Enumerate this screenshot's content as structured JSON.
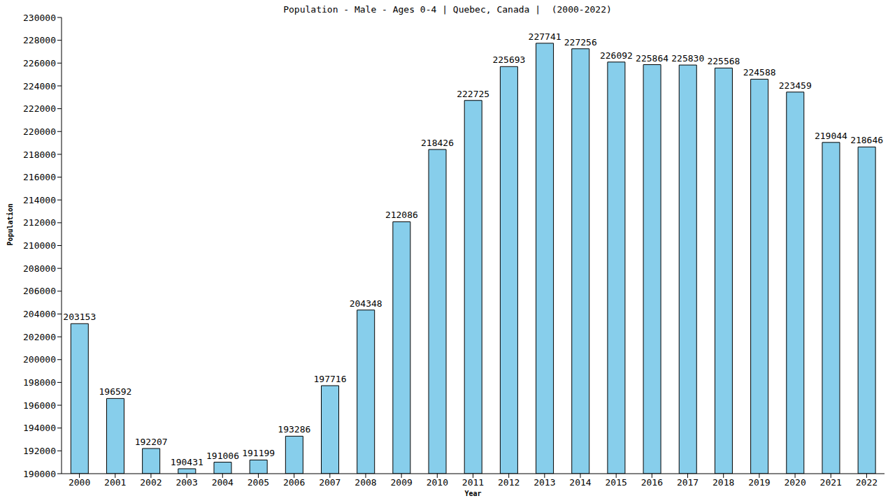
{
  "chart_data": {
    "type": "bar",
    "title": "Population - Male - Ages 0-4 | Quebec, Canada |  (2000-2022)",
    "x_label": "Year",
    "y_label": "Population",
    "categories": [
      "2000",
      "2001",
      "2002",
      "2003",
      "2004",
      "2005",
      "2006",
      "2007",
      "2008",
      "2009",
      "2010",
      "2011",
      "2012",
      "2013",
      "2014",
      "2015",
      "2016",
      "2017",
      "2018",
      "2019",
      "2020",
      "2021",
      "2022"
    ],
    "values": [
      203153,
      196592,
      192207,
      190431,
      191006,
      191199,
      193286,
      197716,
      204348,
      212086,
      218426,
      222725,
      225693,
      227741,
      227256,
      226092,
      225864,
      225830,
      225568,
      224588,
      223459,
      219044,
      218646
    ],
    "color": "#87ceeb",
    "ylim": [
      190000,
      230000
    ],
    "yticks": [
      190000,
      192000,
      194000,
      196000,
      198000,
      200000,
      202000,
      204000,
      206000,
      208000,
      210000,
      212000,
      214000,
      216000,
      218000,
      220000,
      222000,
      224000,
      226000,
      228000,
      230000
    ],
    "grid": false,
    "data_labels": true
  }
}
